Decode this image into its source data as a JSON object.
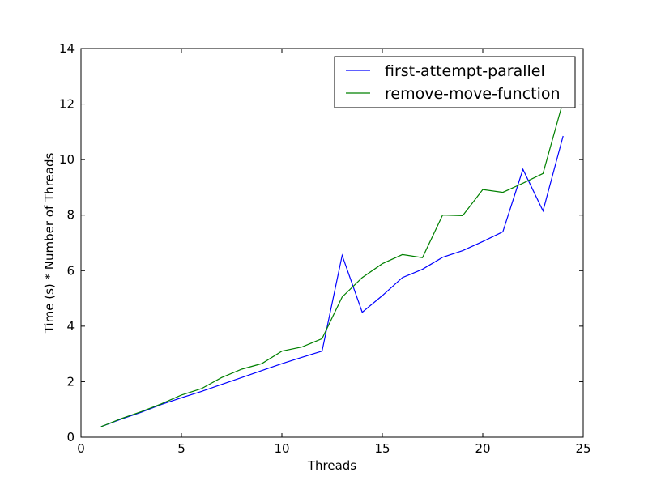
{
  "chart_data": {
    "type": "line",
    "title": "",
    "xlabel": "Threads",
    "ylabel": "Time (s) * Number of Threads",
    "xlim": [
      0,
      25
    ],
    "ylim": [
      0,
      14
    ],
    "xticks": [
      0,
      5,
      10,
      15,
      20,
      25
    ],
    "yticks": [
      0,
      2,
      4,
      6,
      8,
      10,
      12,
      14
    ],
    "grid": false,
    "legend_position": "top-right",
    "series": [
      {
        "name": "first-attempt-parallel",
        "color": "#0000ff",
        "x": [
          1,
          2,
          3,
          4,
          5,
          6,
          7,
          8,
          9,
          10,
          11,
          12,
          13,
          14,
          15,
          16,
          17,
          18,
          19,
          20,
          21,
          22,
          23,
          24
        ],
        "y": [
          0.38,
          0.65,
          0.9,
          1.18,
          1.42,
          1.65,
          1.9,
          2.15,
          2.4,
          2.65,
          2.88,
          3.1,
          6.55,
          4.5,
          5.1,
          5.75,
          6.05,
          6.48,
          6.72,
          7.05,
          7.4,
          9.65,
          8.15,
          10.85
        ]
      },
      {
        "name": "remove-move-function",
        "color": "#008000",
        "x": [
          1,
          2,
          3,
          4,
          5,
          6,
          7,
          8,
          9,
          10,
          11,
          12,
          13,
          14,
          15,
          16,
          17,
          18,
          19,
          20,
          21,
          22,
          23,
          24
        ],
        "y": [
          0.38,
          0.67,
          0.92,
          1.2,
          1.52,
          1.75,
          2.15,
          2.45,
          2.65,
          3.1,
          3.25,
          3.55,
          5.05,
          5.75,
          6.25,
          6.58,
          6.47,
          8.0,
          7.98,
          8.92,
          8.82,
          9.15,
          9.5,
          12.1
        ]
      }
    ]
  }
}
